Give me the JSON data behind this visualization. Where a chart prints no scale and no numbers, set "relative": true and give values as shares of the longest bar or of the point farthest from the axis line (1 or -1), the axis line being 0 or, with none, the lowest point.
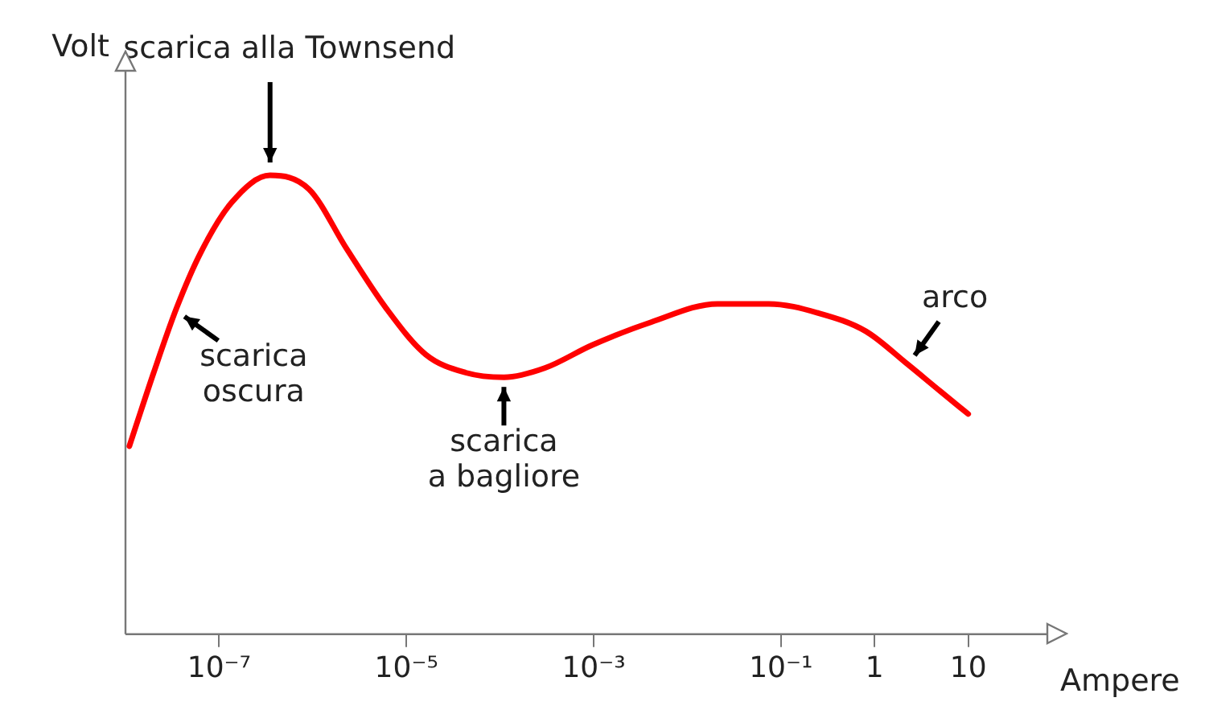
{
  "chart_data": {
    "type": "line",
    "relative": true,
    "xlabel": "Ampere",
    "ylabel": "Volt",
    "log": "x",
    "x": [
      1.1e-08,
      2e-08,
      3.5e-08,
      6.3e-08,
      1.35e-07,
      3.5e-07,
      9.1e-07,
      2.3e-06,
      6.1e-06,
      1.6e-05,
      4.3e-05,
      0.00011,
      0.0003,
      0.00096,
      0.0041,
      0.021,
      0.074,
      0.25,
      0.81,
      2.2,
      5.0,
      10
    ],
    "series": [
      {
        "color": "#ff0000",
        "values": [
          0.41,
          0.57,
          0.71,
          0.83,
          0.94,
          1.0,
          0.97,
          0.84,
          0.71,
          0.61,
          0.57,
          0.56,
          0.58,
          0.63,
          0.68,
          0.72,
          0.72,
          0.7,
          0.66,
          0.59,
          0.53,
          0.48
        ]
      }
    ],
    "xlim": [
      1e-08,
      70
    ],
    "xticks": [
      {
        "value": 1e-07,
        "label": "10⁻⁷"
      },
      {
        "value": 1e-05,
        "label": "10⁻⁵"
      },
      {
        "value": 0.001,
        "label": "10⁻³"
      },
      {
        "value": 0.1,
        "label": "10⁻¹"
      },
      1,
      10
    ],
    "annotations": [
      {
        "text": "scarica alla Townsend",
        "x": 3.5e-07,
        "y": 1.0
      },
      {
        "text": "scarica oscura",
        "x": 3.5e-08,
        "y": 0.71
      },
      {
        "text": "scarica a bagliore",
        "x": 0.00011,
        "y": 0.56
      },
      {
        "text": "arco",
        "x": 2.2,
        "y": 0.59
      }
    ],
    "grid": false,
    "legend": false,
    "marker": "none",
    "line_style": "solid"
  }
}
